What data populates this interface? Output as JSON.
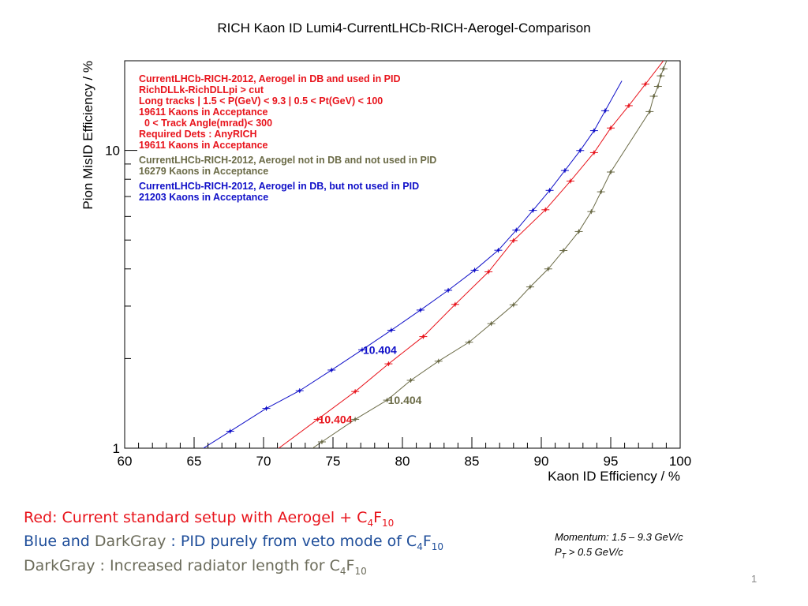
{
  "chart_data": {
    "type": "line",
    "title": "RICH Kaon ID   Lumi4-CurrentLHCb-RICH-Aerogel-Comparison",
    "xlabel": "Kaon ID Efficiency / %",
    "ylabel": "Pion MisID Efficiency / %",
    "xlim": [
      60,
      100
    ],
    "ylim": [
      1,
      20
    ],
    "y_scale": "log",
    "x_ticks": [
      "60",
      "65",
      "70",
      "75",
      "80",
      "85",
      "90",
      "95",
      "100"
    ],
    "y_ticks": [
      "1",
      "10"
    ],
    "grid": false,
    "legend": [
      {
        "color": "#e8141c",
        "lines": [
          "CurrentLHCb-RICH-2012, Aerogel in DB and used in PID",
          "RichDLLk-RichDLLpi > cut",
          "Long tracks | 1.5 < P(GeV) < 9.3 | 0.5 < Pt(GeV) < 100",
          "19611 Kaons in Acceptance",
          "  0 < Track Angle(mrad)< 300",
          "Required Dets : AnyRICH",
          "19611 Kaons in Acceptance"
        ]
      },
      {
        "color": "#6b6b47",
        "lines": [
          "CurrentLHCb-RICH-2012, Aerogel not in DB and not used in PID",
          "16279 Kaons in Acceptance"
        ]
      },
      {
        "color": "#1010c8",
        "lines": [
          "CurrentLHCb-RICH-2012, Aerogel in DB, but not used in PID",
          "21203 Kaons in Acceptance"
        ]
      }
    ],
    "series": [
      {
        "color": "#1010c8",
        "x": [
          67.6,
          70.2,
          72.6,
          74.9,
          77.1,
          79.2,
          81.3,
          83.3,
          85.2,
          86.9,
          88.2,
          89.4,
          90.6,
          91.7,
          92.8,
          93.8,
          94.6
        ],
        "y": [
          1.14,
          1.36,
          1.56,
          1.83,
          2.14,
          2.49,
          2.91,
          3.39,
          3.96,
          4.62,
          5.4,
          6.29,
          7.34,
          8.56,
          9.99,
          11.65,
          13.59
        ],
        "annotation": {
          "text": "10.404",
          "x": 77.1,
          "y": 2.14
        }
      },
      {
        "color": "#e8141c",
        "x": [
          73.9,
          76.6,
          79.0,
          81.5,
          83.8,
          86.2,
          88.0,
          90.3,
          92.1,
          93.8,
          95.0,
          96.3,
          97.5
        ],
        "y": [
          1.25,
          1.55,
          1.92,
          2.37,
          3.04,
          3.91,
          4.98,
          6.32,
          7.89,
          9.83,
          11.89,
          14.13,
          16.7
        ],
        "annotation": {
          "text": "10.404",
          "x": 73.9,
          "y": 1.25
        }
      },
      {
        "color": "#6b6b47",
        "x": [
          74.2,
          76.6,
          78.9,
          80.6,
          82.6,
          84.8,
          86.4,
          88.0,
          89.2,
          90.5,
          91.6,
          92.7,
          93.6,
          94.3,
          95.0,
          97.8,
          98.1,
          98.4,
          98.6,
          98.8
        ],
        "y": [
          1.05,
          1.25,
          1.45,
          1.69,
          1.96,
          2.27,
          2.62,
          3.03,
          3.48,
          4.0,
          4.61,
          5.34,
          6.23,
          7.26,
          8.46,
          13.5,
          15.2,
          16.4,
          17.8,
          18.8
        ],
        "annotation": {
          "text": "10.404",
          "x": 78.9,
          "y": 1.45
        }
      }
    ]
  },
  "captions": {
    "red_prefix": "Red: Current standard setup with  Aerogel + C",
    "red_sub1": "4",
    "red_mid": "F",
    "red_sub2": "10",
    "blue_word": "Blue and ",
    "darkgray_word": "DarkGray",
    "blue_rest": " :  PID purely from veto mode of C",
    "blue_sub1": "4",
    "blue_mid": "F",
    "blue_sub2": "10",
    "gray_prefix": "DarkGray : Increased radiator length for C",
    "gray_sub1": "4",
    "gray_mid": "F",
    "gray_sub2": "10"
  },
  "momentum_note": {
    "line1": "Momentum: 1.5 – 9.3 GeV/c",
    "line2_p": "P",
    "line2_sub": "T",
    "line2_rest": "   > 0.5 GeV/c"
  },
  "page_number": "1"
}
